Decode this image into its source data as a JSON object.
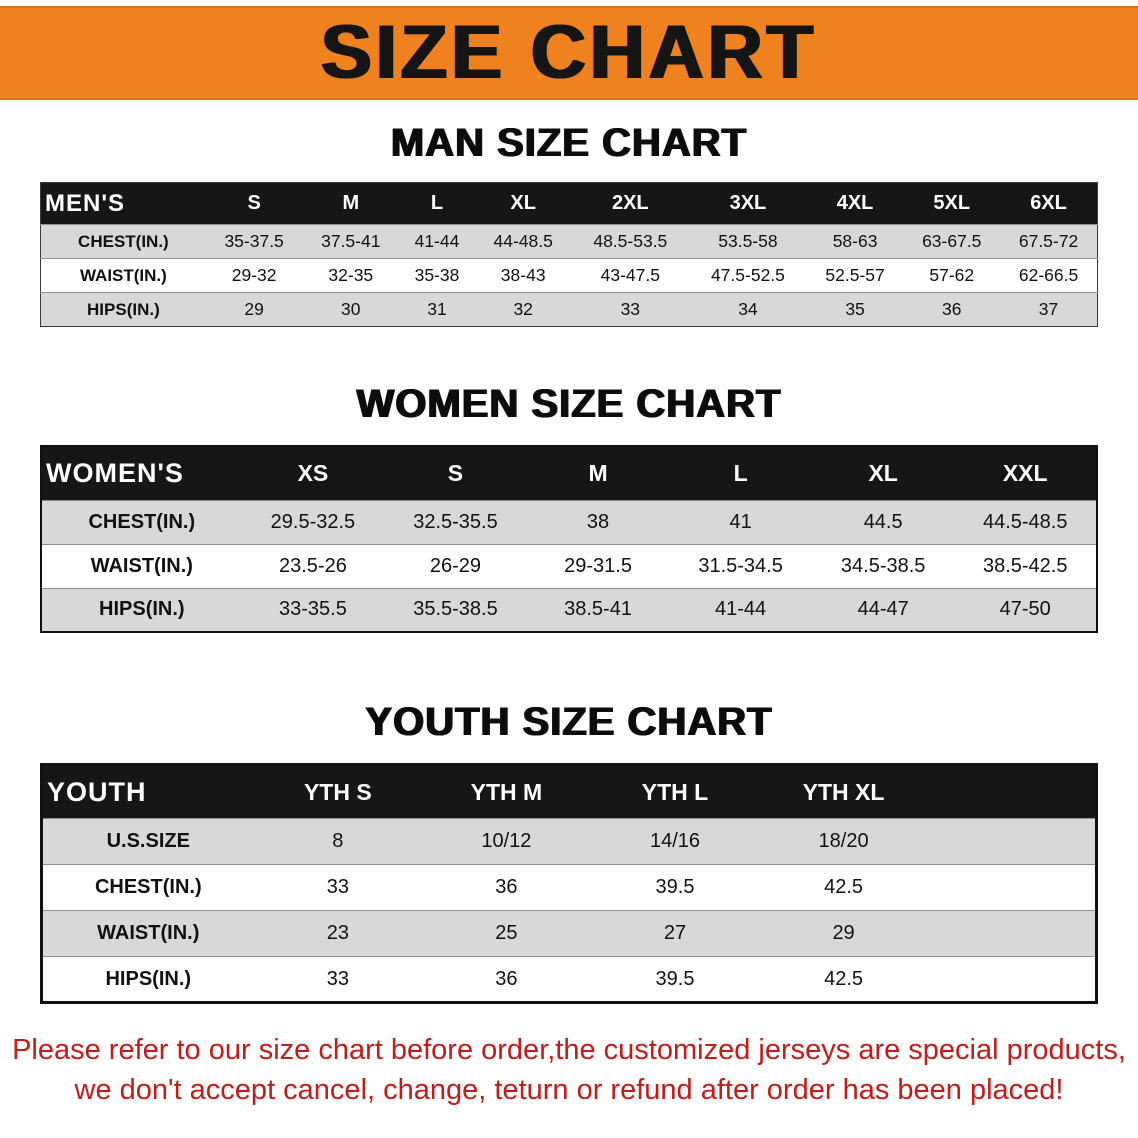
{
  "banner": {
    "title": "SIZE CHART"
  },
  "colors": {
    "banner_bg": "#f0811f",
    "header_bg": "#161616",
    "row_shade": "#d8d8d8",
    "disclaimer_red": "#c41a1a"
  },
  "sections": [
    {
      "heading": "MAN SIZE CHART",
      "table": {
        "header_label": "MEN'S",
        "columns": [
          "S",
          "M",
          "L",
          "XL",
          "2XL",
          "3XL",
          "4XL",
          "5XL",
          "6XL"
        ],
        "rows": [
          {
            "label": "CHEST(IN.)",
            "values": [
              "35-37.5",
              "37.5-41",
              "41-44",
              "44-48.5",
              "48.5-53.5",
              "53.5-58",
              "58-63",
              "63-67.5",
              "67.5-72"
            ]
          },
          {
            "label": "WAIST(IN.)",
            "values": [
              "29-32",
              "32-35",
              "35-38",
              "38-43",
              "43-47.5",
              "47.5-52.5",
              "52.5-57",
              "57-62",
              "62-66.5"
            ]
          },
          {
            "label": "HIPS(IN.)",
            "values": [
              "29",
              "30",
              "31",
              "32",
              "33",
              "34",
              "35",
              "36",
              "37"
            ]
          }
        ]
      }
    },
    {
      "heading": "WOMEN SIZE CHART",
      "table": {
        "header_label": "WOMEN'S",
        "columns": [
          "XS",
          "S",
          "M",
          "L",
          "XL",
          "XXL"
        ],
        "rows": [
          {
            "label": "CHEST(IN.)",
            "values": [
              "29.5-32.5",
              "32.5-35.5",
              "38",
              "41",
              "44.5",
              "44.5-48.5"
            ]
          },
          {
            "label": "WAIST(IN.)",
            "values": [
              "23.5-26",
              "26-29",
              "29-31.5",
              "31.5-34.5",
              "34.5-38.5",
              "38.5-42.5"
            ]
          },
          {
            "label": "HIPS(IN.)",
            "values": [
              "33-35.5",
              "35.5-38.5",
              "38.5-41",
              "41-44",
              "44-47",
              "47-50"
            ]
          }
        ]
      }
    },
    {
      "heading": "YOUTH SIZE CHART",
      "table": {
        "header_label": "YOUTH",
        "columns": [
          "YTH S",
          "YTH M",
          "YTH L",
          "YTH XL"
        ],
        "rows": [
          {
            "label": "U.S.SIZE",
            "values": [
              "8",
              "10/12",
              "14/16",
              "18/20"
            ]
          },
          {
            "label": "CHEST(IN.)",
            "values": [
              "33",
              "36",
              "39.5",
              "42.5"
            ]
          },
          {
            "label": "WAIST(IN.)",
            "values": [
              "23",
              "25",
              "27",
              "29"
            ]
          },
          {
            "label": "HIPS(IN.)",
            "values": [
              "33",
              "36",
              "39.5",
              "42.5"
            ]
          }
        ]
      }
    }
  ],
  "disclaimer": {
    "line1": "Please refer to our size chart before order,the customized jerseys are special products,",
    "line2": "we don't accept cancel, change, teturn or refund after order has been placed!"
  }
}
